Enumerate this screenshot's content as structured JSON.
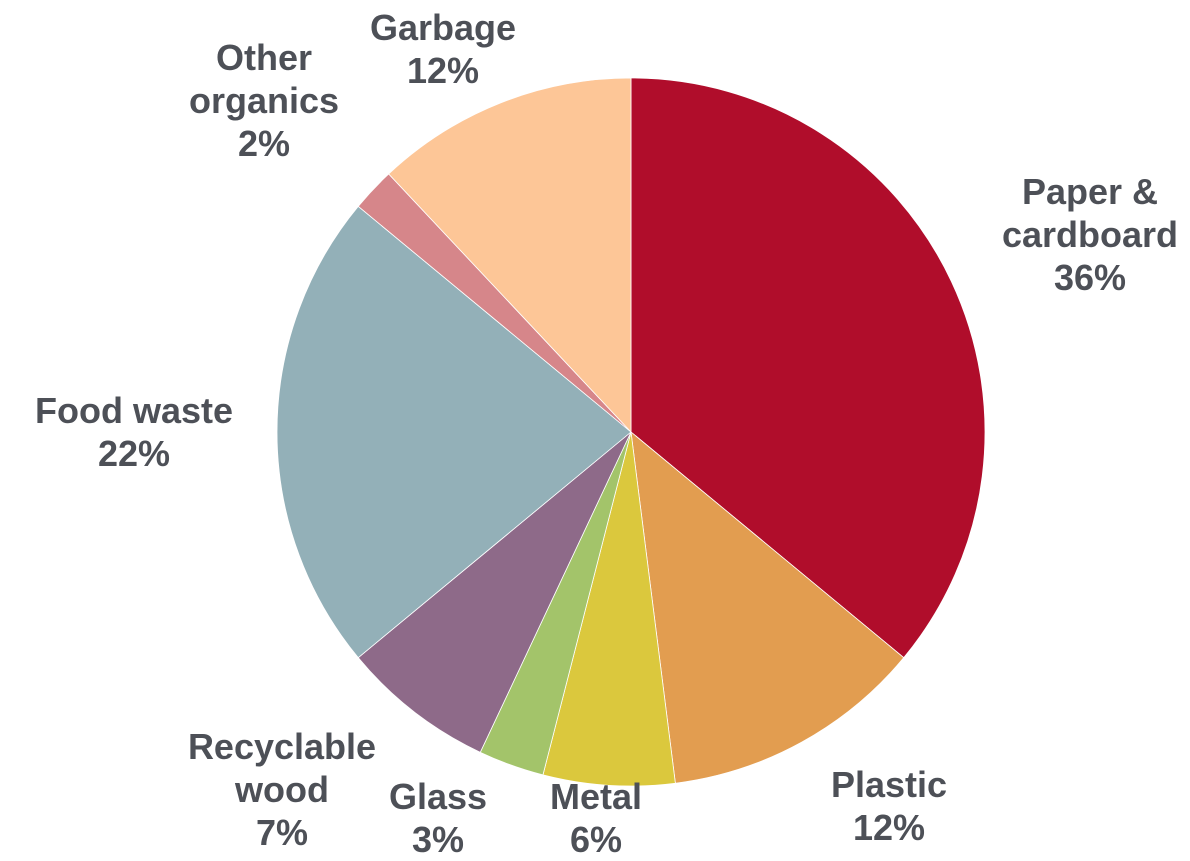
{
  "chart_data": {
    "type": "pie",
    "start": "12 o'clock",
    "direction": "clockwise",
    "slices": [
      {
        "name": "Paper & cardboard",
        "label_lines": [
          "Paper &",
          "cardboard"
        ],
        "value": 36,
        "value_label": "36%",
        "color": "#b00d2b"
      },
      {
        "name": "Plastic",
        "label_lines": [
          "Plastic"
        ],
        "value": 12,
        "value_label": "12%",
        "color": "#e29d50"
      },
      {
        "name": "Metal",
        "label_lines": [
          "Metal"
        ],
        "value": 6,
        "value_label": "6%",
        "color": "#dbc83d"
      },
      {
        "name": "Glass",
        "label_lines": [
          "Glass"
        ],
        "value": 3,
        "value_label": "3%",
        "color": "#a3c46a"
      },
      {
        "name": "Recyclable wood",
        "label_lines": [
          "Recyclable",
          "wood"
        ],
        "value": 7,
        "value_label": "7%",
        "color": "#8e6a89"
      },
      {
        "name": "Food waste",
        "label_lines": [
          "Food waste"
        ],
        "value": 22,
        "value_label": "22%",
        "color": "#93b0b8"
      },
      {
        "name": "Other organics",
        "label_lines": [
          "Other",
          "organics"
        ],
        "value": 2,
        "value_label": "2%",
        "color": "#d6868a"
      },
      {
        "name": "Garbage",
        "label_lines": [
          "Garbage"
        ],
        "value": 12,
        "value_label": "12%",
        "color": "#fdc697"
      }
    ],
    "label_color": "#4d5057"
  }
}
